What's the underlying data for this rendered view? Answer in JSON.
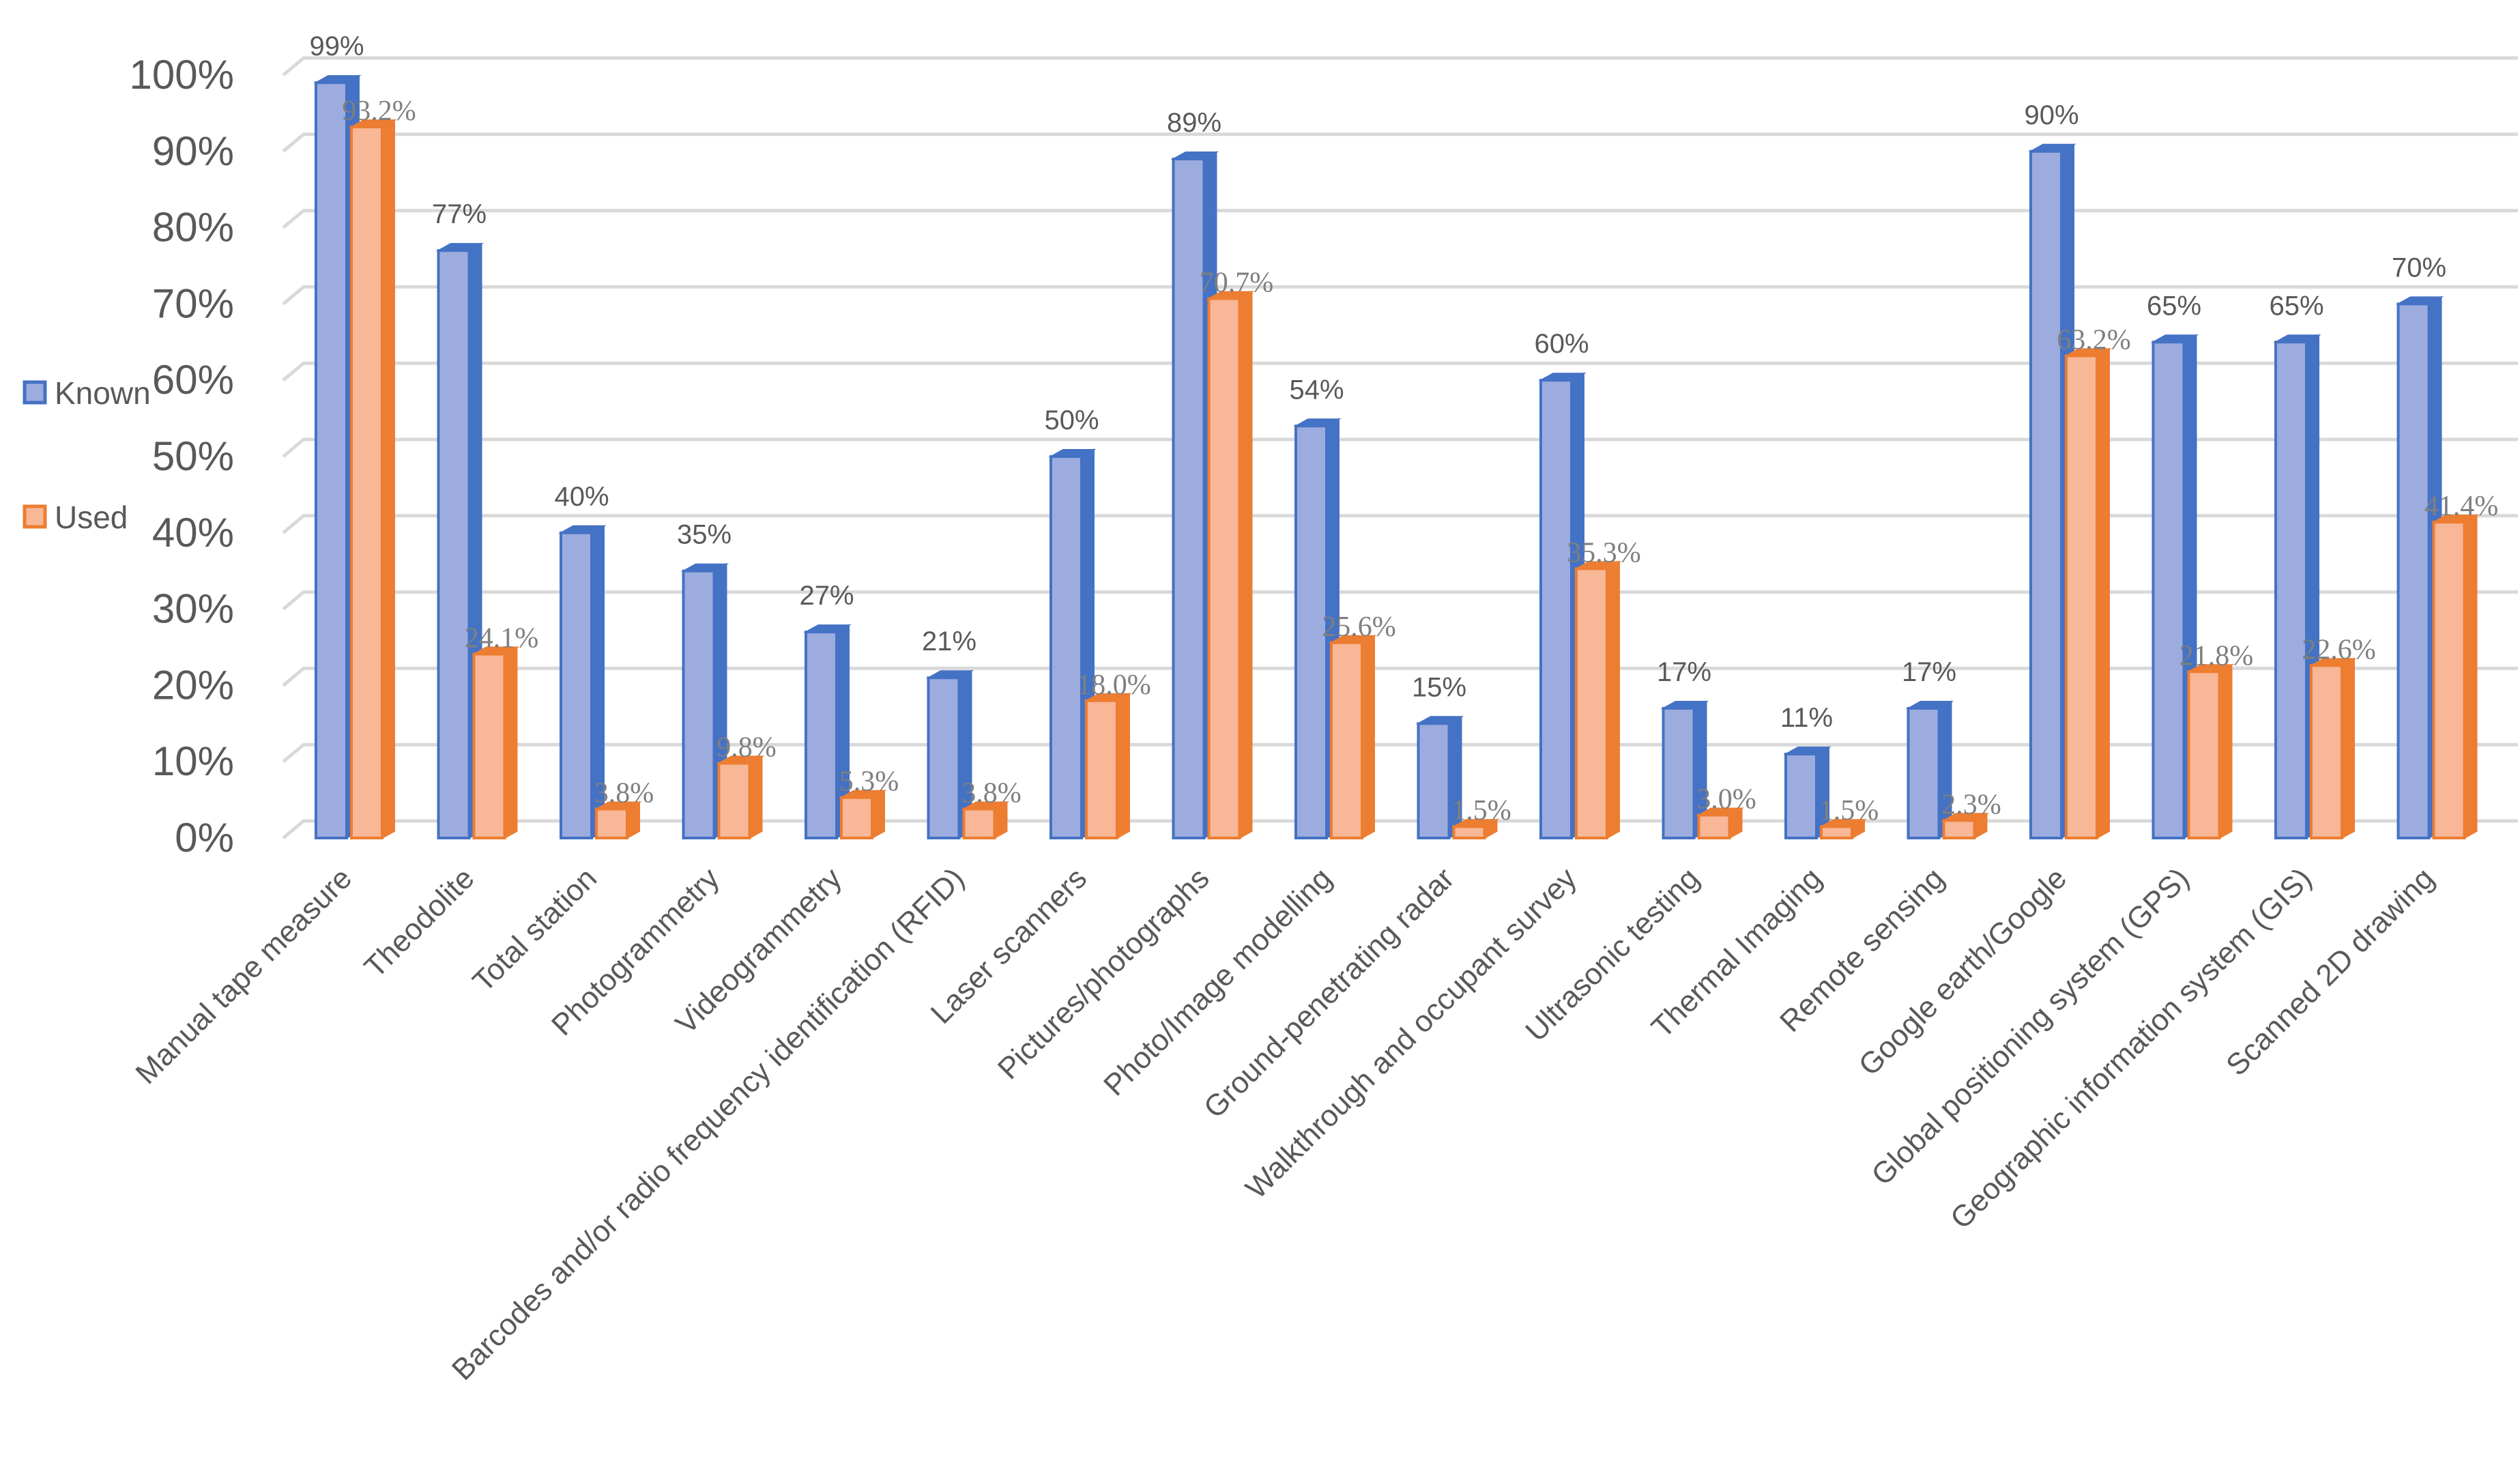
{
  "chart_data": {
    "type": "bar",
    "categories": [
      "Manual tape measure",
      "Theodolite",
      "Total station",
      "Photogrammetry",
      "Videogrammetry",
      "Barcodes and/or radio frequency identification (RFID)",
      "Laser scanners",
      "Pictures/photographs",
      "Photo/Image modelling",
      "Ground-penetrating radar",
      "Walkthrough and occupant survey",
      "Ultrasonic testing",
      "Thermal Imaging",
      "Remote sensing",
      "Google earth/Google",
      "Global positioning system (GPS)",
      "Geographic information system (GIS)",
      "Scanned 2D drawing"
    ],
    "series": [
      {
        "name": "Known",
        "values": [
          99,
          77,
          40,
          35,
          27,
          21,
          50,
          89,
          54,
          15,
          60,
          17,
          11,
          17,
          90,
          65,
          65,
          70
        ],
        "labels": [
          "99%",
          "77%",
          "40%",
          "35%",
          "27%",
          "21%",
          "50%",
          "89%",
          "54%",
          "15%",
          "60%",
          "17%",
          "11%",
          "17%",
          "90%",
          "65%",
          "65%",
          "70%"
        ],
        "color_face": "#9dacdf",
        "color_side": "#4472c4"
      },
      {
        "name": "Used",
        "values": [
          93.2,
          24.1,
          3.8,
          9.8,
          5.3,
          3.8,
          18.0,
          70.7,
          25.6,
          1.5,
          35.3,
          3.0,
          1.5,
          2.3,
          63.2,
          21.8,
          22.6,
          41.4
        ],
        "labels": [
          "93.2%",
          "24.1%",
          "3.8%",
          "9.8%",
          "5.3%",
          "3.8%",
          "18.0%",
          "70.7%",
          "25.6%",
          "1.5%",
          "35.3%",
          "3.0%",
          "1.5%",
          "2.3%",
          "63.2%",
          "21.8%",
          "22.6%",
          "41.4%"
        ],
        "color_face": "#f8b796",
        "color_side": "#ed7d31"
      }
    ],
    "y_ticks": [
      "0%",
      "10%",
      "20%",
      "30%",
      "40%",
      "50%",
      "60%",
      "70%",
      "80%",
      "90%",
      "100%"
    ],
    "ylim": [
      0,
      100
    ],
    "grid": true,
    "legend_position": "left",
    "title": "",
    "xlabel": "",
    "ylabel": ""
  }
}
